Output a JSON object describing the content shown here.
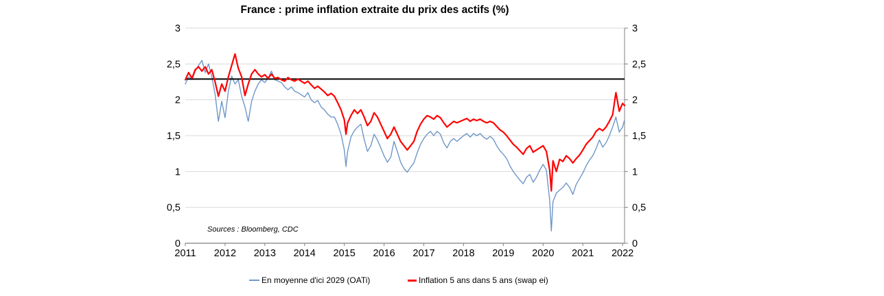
{
  "title": "France : prime inflation extraite du prix des actifs (%)",
  "source_note": "Sources : Bloomberg, CDC",
  "legend": {
    "items": [
      {
        "label": "En moyenne d'ici 2029 (OATi)",
        "color": "#6E96C8"
      },
      {
        "label": "Inflation 5 ans dans 5 ans (swap ei)",
        "color": "#FF0000"
      }
    ]
  },
  "colors": {
    "blue_series": "#6E96C8",
    "red_series": "#FF0000",
    "reference_line": "#000000",
    "gridline": "#D9D9D9",
    "axis_line": "#7F7F7F",
    "text": "#000000",
    "background": "#FFFFFF"
  },
  "chart_data": {
    "type": "line",
    "title": "France : prime inflation extraite du prix des actifs (%)",
    "xlabel": "",
    "ylabel": "",
    "grid": "horizontal",
    "legend_position": "bottom",
    "x_axis": {
      "min": 2011,
      "max": 2022.05,
      "ticks": [
        2011,
        2012,
        2013,
        2014,
        2015,
        2016,
        2017,
        2018,
        2019,
        2020,
        2021,
        2022
      ],
      "tick_labels": [
        "2011",
        "2012",
        "2013",
        "2014",
        "2015",
        "2016",
        "2017",
        "2018",
        "2019",
        "2020",
        "2021",
        "2022"
      ]
    },
    "y_axis": {
      "min": 0,
      "max": 3,
      "step": 0.5,
      "sides": "both",
      "tick_values": [
        0,
        0.5,
        1,
        1.5,
        2,
        2.5,
        3
      ],
      "tick_labels": [
        "0",
        "0,5",
        "1",
        "1,5",
        "2",
        "2,5",
        "3"
      ]
    },
    "reference_line": {
      "value": 2.29,
      "color": "#000000",
      "width": 2
    },
    "x": [
      2011.0,
      2011.083,
      2011.167,
      2011.25,
      2011.333,
      2011.417,
      2011.5,
      2011.583,
      2011.667,
      2011.75,
      2011.833,
      2011.917,
      2012.0,
      2012.083,
      2012.167,
      2012.25,
      2012.333,
      2012.417,
      2012.5,
      2012.583,
      2012.667,
      2012.75,
      2012.833,
      2012.917,
      2013.0,
      2013.083,
      2013.167,
      2013.25,
      2013.333,
      2013.417,
      2013.5,
      2013.583,
      2013.667,
      2013.75,
      2013.833,
      2013.917,
      2014.0,
      2014.083,
      2014.167,
      2014.25,
      2014.333,
      2014.417,
      2014.5,
      2014.583,
      2014.667,
      2014.75,
      2014.833,
      2014.917,
      2015.0,
      2015.042,
      2015.083,
      2015.167,
      2015.25,
      2015.333,
      2015.417,
      2015.5,
      2015.583,
      2015.667,
      2015.75,
      2015.833,
      2015.917,
      2016.0,
      2016.083,
      2016.167,
      2016.25,
      2016.333,
      2016.417,
      2016.5,
      2016.583,
      2016.667,
      2016.75,
      2016.833,
      2016.917,
      2017.0,
      2017.083,
      2017.167,
      2017.25,
      2017.333,
      2017.417,
      2017.5,
      2017.583,
      2017.667,
      2017.75,
      2017.833,
      2017.917,
      2018.0,
      2018.083,
      2018.167,
      2018.25,
      2018.333,
      2018.417,
      2018.5,
      2018.583,
      2018.667,
      2018.75,
      2018.833,
      2018.917,
      2019.0,
      2019.083,
      2019.167,
      2019.25,
      2019.333,
      2019.417,
      2019.5,
      2019.583,
      2019.667,
      2019.75,
      2019.833,
      2019.917,
      2020.0,
      2020.083,
      2020.167,
      2020.208,
      2020.25,
      2020.333,
      2020.417,
      2020.5,
      2020.583,
      2020.667,
      2020.75,
      2020.833,
      2020.917,
      2021.0,
      2021.083,
      2021.167,
      2021.25,
      2021.333,
      2021.417,
      2021.5,
      2021.583,
      2021.667,
      2021.75,
      2021.833,
      2021.917,
      2022.0,
      2022.05
    ],
    "series": [
      {
        "name": "En moyenne d'ici 2029 (OATi)",
        "color": "#6E96C8",
        "stroke_width": 1.4,
        "values": [
          2.22,
          2.32,
          2.28,
          2.4,
          2.48,
          2.55,
          2.38,
          2.5,
          2.32,
          2.08,
          1.7,
          1.98,
          1.75,
          2.12,
          2.33,
          2.22,
          2.28,
          2.05,
          1.9,
          1.7,
          1.98,
          2.12,
          2.22,
          2.28,
          2.24,
          2.3,
          2.4,
          2.28,
          2.26,
          2.24,
          2.18,
          2.14,
          2.18,
          2.12,
          2.1,
          2.07,
          2.04,
          2.1,
          2.0,
          1.96,
          1.99,
          1.9,
          1.86,
          1.8,
          1.76,
          1.76,
          1.66,
          1.52,
          1.3,
          1.07,
          1.28,
          1.48,
          1.57,
          1.62,
          1.66,
          1.45,
          1.28,
          1.36,
          1.52,
          1.44,
          1.33,
          1.22,
          1.13,
          1.2,
          1.42,
          1.28,
          1.13,
          1.04,
          0.99,
          1.06,
          1.12,
          1.26,
          1.38,
          1.46,
          1.52,
          1.56,
          1.5,
          1.56,
          1.52,
          1.4,
          1.33,
          1.42,
          1.46,
          1.42,
          1.46,
          1.5,
          1.53,
          1.48,
          1.53,
          1.5,
          1.53,
          1.48,
          1.45,
          1.49,
          1.45,
          1.36,
          1.29,
          1.24,
          1.18,
          1.08,
          1.0,
          0.94,
          0.88,
          0.83,
          0.92,
          0.96,
          0.85,
          0.92,
          1.02,
          1.1,
          1.02,
          0.6,
          0.17,
          0.58,
          0.7,
          0.74,
          0.78,
          0.84,
          0.78,
          0.68,
          0.82,
          0.9,
          0.98,
          1.08,
          1.16,
          1.22,
          1.32,
          1.44,
          1.34,
          1.4,
          1.5,
          1.62,
          1.76,
          1.55,
          1.62,
          1.72
        ]
      },
      {
        "name": "Inflation 5 ans dans 5 ans (swap ei)",
        "color": "#FF0000",
        "stroke_width": 2.2,
        "values": [
          2.28,
          2.38,
          2.3,
          2.42,
          2.46,
          2.4,
          2.46,
          2.36,
          2.42,
          2.25,
          2.05,
          2.22,
          2.12,
          2.32,
          2.48,
          2.64,
          2.44,
          2.32,
          2.06,
          2.22,
          2.36,
          2.42,
          2.36,
          2.32,
          2.35,
          2.3,
          2.36,
          2.3,
          2.31,
          2.28,
          2.26,
          2.31,
          2.28,
          2.26,
          2.29,
          2.26,
          2.23,
          2.26,
          2.21,
          2.16,
          2.19,
          2.15,
          2.11,
          2.06,
          2.09,
          2.05,
          1.96,
          1.86,
          1.72,
          1.52,
          1.68,
          1.78,
          1.86,
          1.81,
          1.86,
          1.76,
          1.64,
          1.7,
          1.82,
          1.76,
          1.66,
          1.56,
          1.46,
          1.52,
          1.62,
          1.52,
          1.42,
          1.36,
          1.3,
          1.36,
          1.42,
          1.56,
          1.66,
          1.73,
          1.78,
          1.76,
          1.73,
          1.78,
          1.75,
          1.68,
          1.62,
          1.66,
          1.7,
          1.68,
          1.7,
          1.72,
          1.74,
          1.7,
          1.73,
          1.71,
          1.73,
          1.7,
          1.68,
          1.7,
          1.68,
          1.63,
          1.58,
          1.55,
          1.5,
          1.44,
          1.38,
          1.34,
          1.29,
          1.24,
          1.32,
          1.36,
          1.27,
          1.3,
          1.33,
          1.36,
          1.28,
          1.02,
          0.73,
          1.15,
          1.0,
          1.17,
          1.14,
          1.22,
          1.18,
          1.12,
          1.18,
          1.23,
          1.3,
          1.38,
          1.43,
          1.48,
          1.56,
          1.6,
          1.57,
          1.62,
          1.7,
          1.79,
          2.1,
          1.84,
          1.95,
          1.92
        ]
      }
    ]
  }
}
